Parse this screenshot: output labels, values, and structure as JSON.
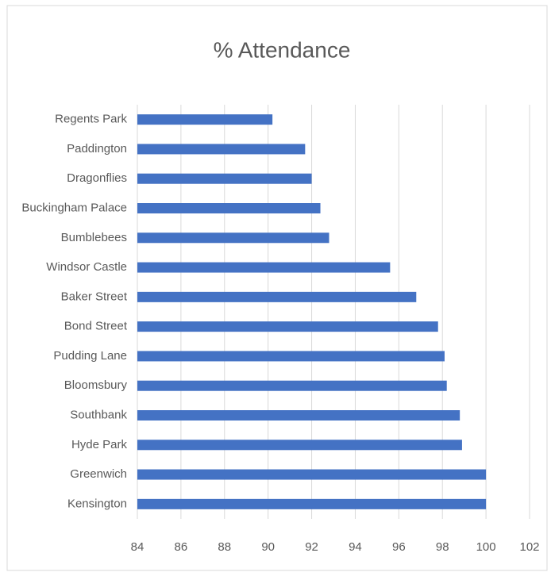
{
  "chart_data": {
    "type": "barh",
    "title": "% Attendance",
    "categories": [
      "Regents Park",
      "Paddington",
      "Dragonflies",
      "Buckingham Palace",
      "Bumblebees",
      "Windsor Castle",
      "Baker Street",
      "Bond Street",
      "Pudding Lane",
      "Bloomsbury",
      "Southbank",
      "Hyde Park",
      "Greenwich",
      "Kensington"
    ],
    "values": [
      90.2,
      91.7,
      92.0,
      92.4,
      92.8,
      95.6,
      96.8,
      97.8,
      98.1,
      98.2,
      98.8,
      98.9,
      100,
      100
    ],
    "color": "#4472c4",
    "xlim": [
      84,
      102
    ],
    "xticks": [
      84,
      86,
      88,
      90,
      92,
      94,
      96,
      98,
      100,
      102
    ],
    "grid": true
  }
}
